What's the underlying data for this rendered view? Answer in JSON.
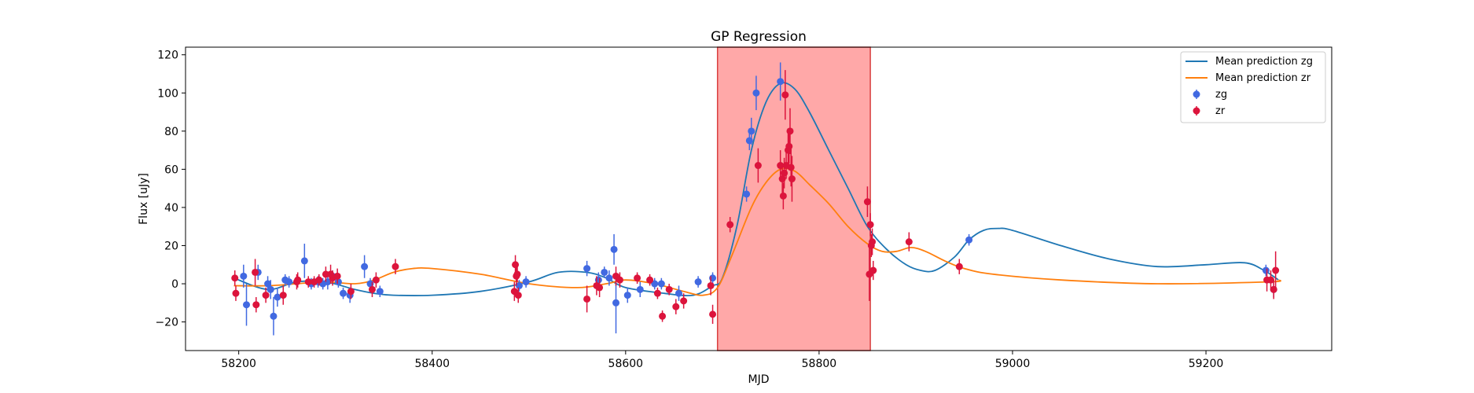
{
  "chart_data": {
    "type": "scatter",
    "title": "GP Regression",
    "xlabel": "MJD",
    "ylabel": "Flux [uJy]",
    "xlim": [
      58145,
      59330
    ],
    "ylim": [
      -35,
      124
    ],
    "xticks": [
      58200,
      58400,
      58600,
      58800,
      59000,
      59200
    ],
    "yticks": [
      -20,
      0,
      20,
      40,
      60,
      80,
      100,
      120
    ],
    "grid": false,
    "legend_position": "top-right",
    "shaded_region": {
      "x0": 58695,
      "x1": 58853,
      "color": "#ff9999"
    },
    "colors": {
      "mean_zg": "#1f77b4",
      "mean_zr": "#ff7f0e",
      "zg": "#4169e1",
      "zr": "#dc143c"
    },
    "lines": [
      {
        "name": "Mean prediction zg",
        "color": "#1f77b4",
        "points": [
          [
            58195,
            3
          ],
          [
            58230,
            -3
          ],
          [
            58260,
            1
          ],
          [
            58290,
            1
          ],
          [
            58320,
            -3
          ],
          [
            58340,
            -5
          ],
          [
            58360,
            -6
          ],
          [
            58400,
            -6
          ],
          [
            58450,
            -4
          ],
          [
            58500,
            1
          ],
          [
            58530,
            6
          ],
          [
            58560,
            6
          ],
          [
            58580,
            3
          ],
          [
            58600,
            -2
          ],
          [
            58640,
            -5
          ],
          [
            58670,
            -6
          ],
          [
            58690,
            -1
          ],
          [
            58700,
            3
          ],
          [
            58715,
            30
          ],
          [
            58730,
            70
          ],
          [
            58745,
            95
          ],
          [
            58760,
            105
          ],
          [
            58775,
            102
          ],
          [
            58790,
            90
          ],
          [
            58810,
            70
          ],
          [
            58830,
            50
          ],
          [
            58850,
            30
          ],
          [
            58870,
            18
          ],
          [
            58890,
            10
          ],
          [
            58905,
            7
          ],
          [
            58920,
            7
          ],
          [
            58940,
            14
          ],
          [
            58955,
            23
          ],
          [
            58970,
            28
          ],
          [
            58985,
            29
          ],
          [
            59000,
            28
          ],
          [
            59050,
            20
          ],
          [
            59100,
            13
          ],
          [
            59150,
            9
          ],
          [
            59200,
            10
          ],
          [
            59240,
            11
          ],
          [
            59260,
            7
          ],
          [
            59275,
            2
          ]
        ]
      },
      {
        "name": "Mean prediction zr",
        "color": "#ff7f0e",
        "points": [
          [
            58195,
            -1
          ],
          [
            58230,
            -1
          ],
          [
            58260,
            0
          ],
          [
            58290,
            1
          ],
          [
            58320,
            0
          ],
          [
            58340,
            2
          ],
          [
            58360,
            6
          ],
          [
            58380,
            8
          ],
          [
            58400,
            8
          ],
          [
            58450,
            5
          ],
          [
            58500,
            0
          ],
          [
            58550,
            -2
          ],
          [
            58580,
            0
          ],
          [
            58600,
            2
          ],
          [
            58630,
            0
          ],
          [
            58660,
            -4
          ],
          [
            58680,
            -6
          ],
          [
            58695,
            -2
          ],
          [
            58710,
            15
          ],
          [
            58730,
            40
          ],
          [
            58745,
            53
          ],
          [
            58760,
            60
          ],
          [
            58775,
            59
          ],
          [
            58790,
            52
          ],
          [
            58810,
            42
          ],
          [
            58830,
            30
          ],
          [
            58850,
            21
          ],
          [
            58865,
            17
          ],
          [
            58880,
            17
          ],
          [
            58895,
            19
          ],
          [
            58910,
            17
          ],
          [
            58930,
            12
          ],
          [
            58950,
            8
          ],
          [
            58980,
            5
          ],
          [
            59050,
            2
          ],
          [
            59150,
            0
          ],
          [
            59265,
            1
          ],
          [
            59275,
            2
          ]
        ]
      }
    ],
    "series": [
      {
        "name": "zg",
        "color": "#4169e1",
        "points": [
          [
            58205,
            4,
            6
          ],
          [
            58208,
            -11,
            11
          ],
          [
            58220,
            6,
            4
          ],
          [
            58230,
            0,
            4
          ],
          [
            58233,
            -3,
            5
          ],
          [
            58236,
            -17,
            10
          ],
          [
            58240,
            -7,
            5
          ],
          [
            58248,
            2,
            3
          ],
          [
            58252,
            1,
            3
          ],
          [
            58268,
            12,
            9
          ],
          [
            58275,
            0,
            3
          ],
          [
            58282,
            1,
            3
          ],
          [
            58287,
            0,
            3
          ],
          [
            58292,
            1,
            4
          ],
          [
            58297,
            4,
            3
          ],
          [
            58303,
            1,
            3
          ],
          [
            58308,
            -5,
            3
          ],
          [
            58315,
            -6,
            4
          ],
          [
            58330,
            9,
            6
          ],
          [
            58336,
            0,
            3
          ],
          [
            58346,
            -4,
            3
          ],
          [
            58490,
            -1,
            3
          ],
          [
            58497,
            1,
            3
          ],
          [
            58560,
            8,
            4
          ],
          [
            58572,
            2,
            4
          ],
          [
            58578,
            6,
            3
          ],
          [
            58583,
            3,
            4
          ],
          [
            58588,
            18,
            8
          ],
          [
            58590,
            -10,
            16
          ],
          [
            58602,
            -6,
            4
          ],
          [
            58615,
            -3,
            4
          ],
          [
            58630,
            0,
            3
          ],
          [
            58637,
            0,
            3
          ],
          [
            58655,
            -5,
            4
          ],
          [
            58675,
            1,
            3
          ],
          [
            58690,
            3,
            3
          ],
          [
            58725,
            47,
            4
          ],
          [
            58728,
            75,
            5
          ],
          [
            58730,
            80,
            7
          ],
          [
            58735,
            100,
            9
          ],
          [
            58760,
            106,
            10
          ],
          [
            58955,
            23,
            3
          ],
          [
            59262,
            7,
            3
          ],
          [
            59270,
            -3,
            4
          ]
        ]
      },
      {
        "name": "zr",
        "color": "#dc143c",
        "points": [
          [
            58196,
            3,
            4
          ],
          [
            58197,
            -5,
            4
          ],
          [
            58217,
            6,
            7
          ],
          [
            58218,
            -11,
            4
          ],
          [
            58228,
            -6,
            4
          ],
          [
            58246,
            -6,
            5
          ],
          [
            58260,
            1,
            4
          ],
          [
            58261,
            2,
            4
          ],
          [
            58272,
            1,
            3
          ],
          [
            58278,
            1,
            3
          ],
          [
            58283,
            2,
            3
          ],
          [
            58290,
            5,
            4
          ],
          [
            58295,
            5,
            5
          ],
          [
            58297,
            3,
            4
          ],
          [
            58302,
            4,
            4
          ],
          [
            58316,
            -4,
            4
          ],
          [
            58338,
            -3,
            4
          ],
          [
            58342,
            2,
            4
          ],
          [
            58362,
            9,
            4
          ],
          [
            58485,
            -4,
            5
          ],
          [
            58486,
            10,
            5
          ],
          [
            58487,
            4,
            5
          ],
          [
            58488,
            5,
            4
          ],
          [
            58489,
            -6,
            4
          ],
          [
            58560,
            -8,
            7
          ],
          [
            58570,
            -1,
            5
          ],
          [
            58573,
            -2,
            5
          ],
          [
            58590,
            4,
            5
          ],
          [
            58594,
            2,
            4
          ],
          [
            58612,
            3,
            3
          ],
          [
            58625,
            2,
            3
          ],
          [
            58633,
            -5,
            3
          ],
          [
            58638,
            -17,
            3
          ],
          [
            58645,
            -3,
            3
          ],
          [
            58652,
            -12,
            4
          ],
          [
            58660,
            -9,
            4
          ],
          [
            58688,
            -1,
            5
          ],
          [
            58690,
            -16,
            5
          ],
          [
            58708,
            31,
            4
          ],
          [
            58737,
            62,
            9
          ],
          [
            58760,
            62,
            8
          ],
          [
            58762,
            55,
            8
          ],
          [
            58763,
            46,
            7
          ],
          [
            58764,
            58,
            8
          ],
          [
            58765,
            99,
            13
          ],
          [
            58766,
            62,
            7
          ],
          [
            58768,
            70,
            10
          ],
          [
            58769,
            72,
            9
          ],
          [
            58770,
            80,
            12
          ],
          [
            58771,
            61,
            10
          ],
          [
            58772,
            55,
            12
          ],
          [
            58850,
            43,
            8
          ],
          [
            58852,
            5,
            14
          ],
          [
            58853,
            31,
            6
          ],
          [
            58854,
            20,
            6
          ],
          [
            58855,
            22,
            7
          ],
          [
            58856,
            7,
            5
          ],
          [
            58893,
            22,
            5
          ],
          [
            58945,
            9,
            4
          ],
          [
            59263,
            2,
            6
          ],
          [
            59267,
            2,
            5
          ],
          [
            59270,
            -3,
            5
          ],
          [
            59272,
            7,
            10
          ]
        ]
      }
    ]
  }
}
